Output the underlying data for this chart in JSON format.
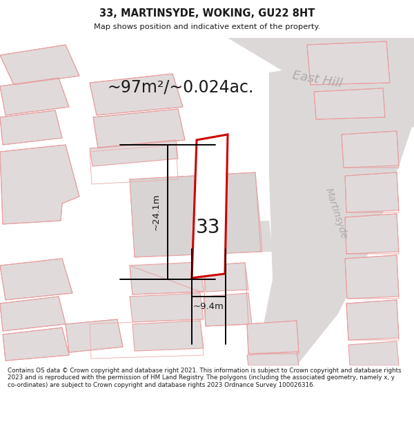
{
  "title": "33, MARTINSYDE, WOKING, GU22 8HT",
  "subtitle": "Map shows position and indicative extent of the property.",
  "area_text": "~97m²/~0.024ac.",
  "street_east_hill": "East Hill",
  "street_martinsyde": "Martinsyde",
  "plot_number": "33",
  "dim_h": "~24.1m",
  "dim_w": "~9.4m",
  "footer": "Contains OS data © Crown copyright and database right 2021. This information is subject to Crown copyright and database rights 2023 and is reproduced with the permission of HM Land Registry. The polygons (including the associated geometry, namely x, y co-ordinates) are subject to Crown copyright and database rights 2023 Ordnance Survey 100026316.",
  "bg": "#f5f0f0",
  "road_c": "#ddd8d8",
  "bfill": "#e0dadb",
  "bedge": "#e8a0a0",
  "red": "#cc0000",
  "dark": "#1a1a1a",
  "gray_lbl": "#b0aaaa"
}
